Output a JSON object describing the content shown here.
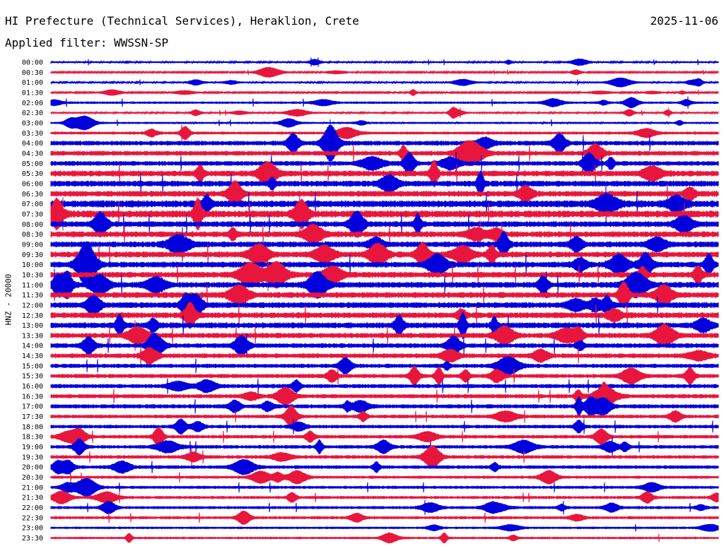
{
  "header": {
    "title": "HI Prefecture (Technical Services), Heraklion, Crete",
    "date": "2025-11-06",
    "filter": "Applied filter: WWSSN-SP"
  },
  "channel_label": "HNZ - 20000",
  "colors": {
    "trace_a": "#0000dd",
    "trace_b": "#e8163c",
    "background": "#ffffff",
    "text": "#000000"
  },
  "chart_data": {
    "type": "line",
    "subtype": "helicorder",
    "title": "HI Prefecture (Technical Services), Heraklion, Crete",
    "ylabel": "HNZ - 20000",
    "row_labels": [
      "00:00",
      "00:30",
      "01:00",
      "01:30",
      "02:00",
      "02:30",
      "03:00",
      "03:30",
      "04:00",
      "04:30",
      "05:00",
      "05:30",
      "06:00",
      "06:30",
      "07:00",
      "07:30",
      "08:00",
      "08:30",
      "09:00",
      "09:30",
      "10:00",
      "10:30",
      "11:00",
      "11:30",
      "12:00",
      "12:30",
      "13:00",
      "13:30",
      "14:00",
      "14:30",
      "15:00",
      "15:30",
      "16:00",
      "16:30",
      "17:00",
      "17:30",
      "18:00",
      "18:30",
      "19:00",
      "19:30",
      "20:00",
      "20:30",
      "21:00",
      "21:30",
      "22:00",
      "22:30",
      "23:00",
      "23:30"
    ],
    "series_colors": [
      "#0000dd",
      "#e8163c"
    ],
    "relative_amplitude": [
      0.3,
      0.25,
      0.3,
      0.25,
      0.4,
      0.3,
      0.35,
      0.5,
      0.8,
      0.8,
      0.8,
      1.0,
      1.0,
      1.0,
      1.2,
      1.2,
      1.0,
      1.0,
      1.0,
      1.0,
      1.0,
      1.0,
      1.0,
      1.0,
      1.0,
      1.0,
      1.0,
      0.9,
      0.8,
      0.8,
      0.7,
      0.7,
      0.7,
      0.7,
      0.7,
      0.6,
      0.6,
      0.6,
      0.6,
      0.6,
      0.6,
      0.5,
      0.5,
      0.5,
      0.5,
      0.5,
      0.4,
      0.4
    ],
    "grid": false
  }
}
